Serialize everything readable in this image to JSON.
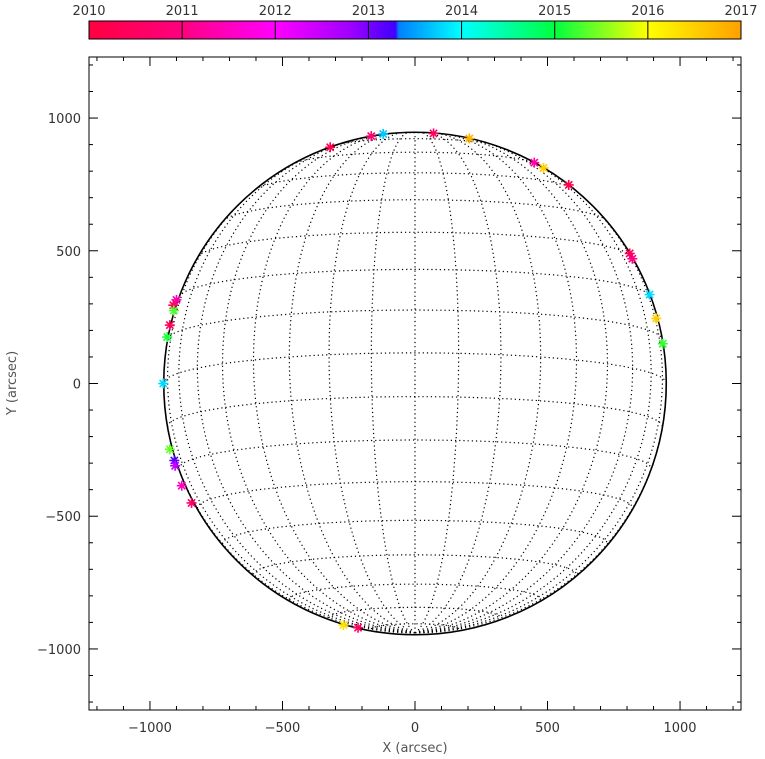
{
  "chart_data": {
    "type": "scatter",
    "xlabel": "X (arcsec)",
    "ylabel": "Y (arcsec)",
    "xlim": [
      -1230,
      1230
    ],
    "ylim": [
      -1230,
      1230
    ],
    "x_ticks": [
      -1000,
      -500,
      0,
      500,
      1000
    ],
    "y_ticks": [
      -1000,
      -500,
      0,
      500,
      1000
    ],
    "grid": "heliographic",
    "solar_radius_arcsec": 948,
    "colorbar": {
      "placement": "top",
      "range": [
        2010,
        2017
      ],
      "ticks": [
        "2010",
        "2011",
        "2012",
        "2013",
        "2014",
        "2015",
        "2016",
        "2017"
      ],
      "colors": [
        "#ff0040",
        "#ff00ff",
        "#0000ff",
        "#00ffff",
        "#00ff00",
        "#ffff00",
        "#ffa000"
      ]
    },
    "points": [
      {
        "x": -320,
        "y": 890,
        "t": 2010.2
      },
      {
        "x": -165,
        "y": 932,
        "t": 2010.7
      },
      {
        "x": -120,
        "y": 940,
        "t": 2013.7
      },
      {
        "x": 70,
        "y": 942,
        "t": 2010.5
      },
      {
        "x": 205,
        "y": 923,
        "t": 2016.8
      },
      {
        "x": 450,
        "y": 832,
        "t": 2011.3
      },
      {
        "x": 485,
        "y": 812,
        "t": 2016.5
      },
      {
        "x": 580,
        "y": 748,
        "t": 2010.2
      },
      {
        "x": 810,
        "y": 490,
        "t": 2010.3
      },
      {
        "x": 820,
        "y": 470,
        "t": 2011.0
      },
      {
        "x": 885,
        "y": 335,
        "t": 2013.8
      },
      {
        "x": 910,
        "y": 245,
        "t": 2016.5
      },
      {
        "x": 935,
        "y": 150,
        "t": 2015.2
      },
      {
        "x": -900,
        "y": 315,
        "t": 2011.4
      },
      {
        "x": -912,
        "y": 295,
        "t": 2010.5
      },
      {
        "x": -910,
        "y": 275,
        "t": 2015.3
      },
      {
        "x": -925,
        "y": 220,
        "t": 2010.4
      },
      {
        "x": -935,
        "y": 175,
        "t": 2015.1
      },
      {
        "x": -950,
        "y": 0,
        "t": 2013.8
      },
      {
        "x": -925,
        "y": -248,
        "t": 2015.4
      },
      {
        "x": -908,
        "y": -290,
        "t": 2013.2
      },
      {
        "x": -905,
        "y": -310,
        "t": 2012.5
      },
      {
        "x": -880,
        "y": -385,
        "t": 2011.5
      },
      {
        "x": -843,
        "y": -450,
        "t": 2010.6
      },
      {
        "x": -270,
        "y": -910,
        "t": 2016.3
      },
      {
        "x": -215,
        "y": -920,
        "t": 2010.5
      }
    ]
  }
}
